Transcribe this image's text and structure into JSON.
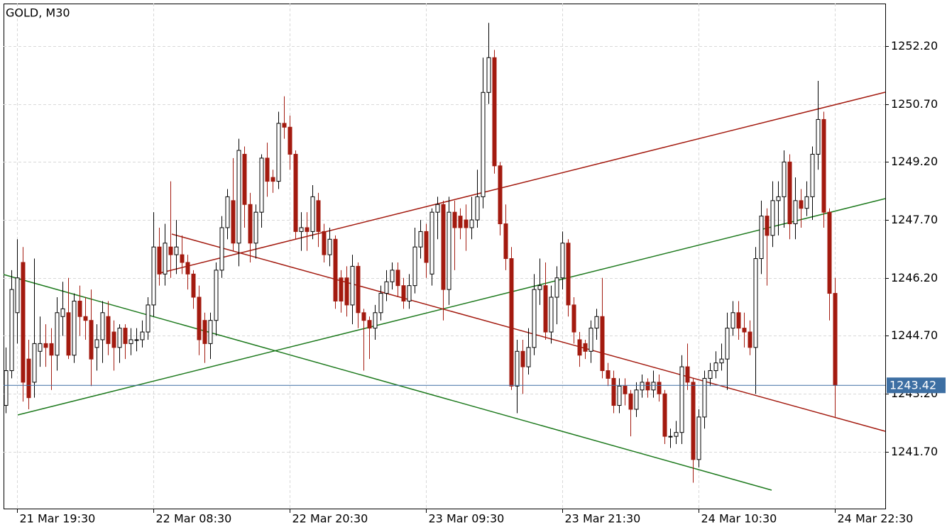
{
  "chart_data": {
    "type": "candlestick",
    "title": "GOLD, M30",
    "categories": [
      null,
      null,
      "21 Mar 19:30",
      null,
      null,
      null,
      null,
      null,
      null,
      null,
      null,
      null,
      null,
      null,
      null,
      null,
      null,
      null,
      null,
      null,
      null,
      null,
      null,
      null,
      null,
      null,
      "22 Mar 08:30",
      null,
      null,
      null,
      null,
      null,
      null,
      null,
      null,
      null,
      null,
      null,
      null,
      null,
      null,
      null,
      null,
      null,
      null,
      null,
      null,
      null,
      null,
      null,
      "22 Mar 20:30",
      null,
      null,
      null,
      null,
      null,
      null,
      null,
      null,
      null,
      null,
      null,
      null,
      null,
      null,
      null,
      null,
      null,
      null,
      null,
      null,
      null,
      null,
      null,
      "23 Mar 09:30",
      null,
      null,
      null,
      null,
      null,
      null,
      null,
      null,
      null,
      null,
      null,
      null,
      null,
      null,
      null,
      null,
      null,
      null,
      null,
      null,
      null,
      null,
      null,
      "23 Mar 21:30",
      null,
      null,
      null,
      null,
      null,
      null,
      null,
      null,
      null,
      null,
      null,
      null,
      null,
      null,
      null,
      null,
      null,
      null,
      null,
      null,
      null,
      null,
      null,
      "24 Mar 10:30",
      null,
      null,
      null,
      null,
      null,
      null,
      null,
      null,
      null,
      null,
      null,
      null,
      null,
      null,
      null,
      null,
      null,
      null,
      null,
      null,
      null,
      null,
      null,
      "24 Mar 22:30"
    ],
    "open": [
      1242.9,
      1243.8,
      1245.3,
      1246.6,
      1244.1,
      1243.5,
      1244.3,
      1244.5,
      1244.5,
      1244.2,
      1245.2,
      1245.3,
      1244.2,
      1245.6,
      1245.2,
      1245.1,
      1244.4,
      1244.6,
      1245.2,
      1244.8,
      1244.4,
      1244.9,
      1244.5,
      1244.6,
      1244.6,
      1244.8,
      1245.5,
      1247.0,
      1246.3,
      1247.0,
      1246.8,
      1246.8,
      1246.6,
      1246.3,
      1245.7,
      1245.1,
      1244.5,
      1245.1,
      1246.4,
      1247.5,
      1248.2,
      1247.1,
      1249.4,
      1248.1,
      1247.1,
      1247.9,
      1249.3,
      1248.8,
      1248.7,
      1250.2,
      1250.1,
      1249.4,
      1247.4,
      1247.5,
      1247.4,
      1248.2,
      1247.4,
      1246.8,
      1247.2,
      1246.2,
      1246.2,
      1245.5,
      1246.5,
      1245.3,
      1245.1,
      1244.9,
      1245.3,
      1245.8,
      1246.1,
      1246.4,
      1246.0,
      1245.6,
      1246.0,
      1247.0,
      1247.4,
      1246.3,
      1247.9,
      1248.1,
      1245.9,
      1247.9,
      1247.8,
      1247.7,
      1247.5,
      1247.7,
      1248.3,
      1251.0,
      1251.9,
      1249.1,
      1247.6,
      1246.7,
      1243.4,
      1244.3,
      1243.9,
      1244.4,
      1245.9,
      1246.0,
      1244.8,
      1245.7,
      1246.2,
      1247.1,
      1245.5,
      1244.6,
      1244.5,
      1244.3,
      1244.9,
      1245.2,
      1243.8,
      1243.6,
      1242.9,
      1243.4,
      1243.2,
      1242.8,
      1243.3,
      1243.5,
      1243.3,
      1243.5,
      1243.2,
      1242.1,
      1242.1,
      1242.2,
      1243.9,
      1243.5,
      1241.5,
      1242.6,
      1243.6,
      1243.8,
      1244.0,
      1244.1,
      1244.9,
      1245.3,
      1244.9,
      1244.8,
      1244.4,
      1246.7,
      1247.8,
      1247.3,
      1248.2,
      1248.3,
      1249.2,
      1247.6,
      1248.2,
      1248.0,
      1248.3,
      1249.4,
      1250.3,
      1247.9,
      1245.8
    ],
    "high": [
      1244.4,
      1246.4,
      1247.2,
      1247.0,
      1244.6,
      1246.7,
      1245.2,
      1245.0,
      1244.9,
      1245.7,
      1246.1,
      1246.2,
      1245.8,
      1246.0,
      1245.7,
      1245.9,
      1245.0,
      1245.6,
      1245.6,
      1245.1,
      1245.0,
      1245.0,
      1244.9,
      1244.9,
      1245.1,
      1245.7,
      1247.9,
      1247.5,
      1247.6,
      1248.7,
      1247.7,
      1247.3,
      1246.8,
      1246.4,
      1246.0,
      1245.3,
      1245.3,
      1246.6,
      1247.8,
      1248.5,
      1249.3,
      1249.8,
      1249.6,
      1248.4,
      1248.1,
      1249.4,
      1249.7,
      1249.0,
      1250.5,
      1250.9,
      1250.4,
      1249.5,
      1247.9,
      1247.9,
      1248.6,
      1248.4,
      1247.6,
      1247.5,
      1247.3,
      1246.4,
      1246.5,
      1246.8,
      1246.6,
      1245.4,
      1245.2,
      1245.5,
      1246.0,
      1246.4,
      1246.6,
      1246.6,
      1246.2,
      1246.3,
      1247.5,
      1247.7,
      1247.6,
      1248.0,
      1248.3,
      1248.2,
      1248.3,
      1248.2,
      1248.0,
      1248.1,
      1248.3,
      1249.0,
      1251.9,
      1252.8,
      1252.1,
      1249.2,
      1248.1,
      1247.0,
      1244.6,
      1244.6,
      1244.9,
      1246.3,
      1246.7,
      1246.6,
      1246.0,
      1246.5,
      1247.4,
      1247.2,
      1245.7,
      1244.8,
      1244.6,
      1245.1,
      1245.4,
      1246.2,
      1244.0,
      1243.8,
      1243.6,
      1243.6,
      1243.3,
      1243.5,
      1243.7,
      1243.6,
      1243.8,
      1243.7,
      1243.3,
      1242.3,
      1242.5,
      1244.2,
      1244.5,
      1243.6,
      1242.8,
      1243.8,
      1244.0,
      1244.3,
      1244.5,
      1245.3,
      1245.6,
      1245.6,
      1245.3,
      1245.1,
      1247.0,
      1248.2,
      1248.0,
      1248.7,
      1248.7,
      1249.5,
      1249.4,
      1248.8,
      1248.5,
      1248.7,
      1249.6,
      1251.3,
      1250.5,
      1248.0,
      1246.2
    ],
    "low": [
      1242.7,
      1243.6,
      1244.5,
      1243.0,
      1242.8,
      1243.1,
      1243.9,
      1243.9,
      1243.3,
      1243.8,
      1244.7,
      1244.1,
      1244.0,
      1244.7,
      1244.6,
      1243.4,
      1243.8,
      1244.0,
      1244.2,
      1243.8,
      1244.0,
      1244.1,
      1244.2,
      1244.3,
      1244.4,
      1244.6,
      1245.2,
      1246.0,
      1246.0,
      1246.2,
      1246.3,
      1246.3,
      1245.9,
      1245.4,
      1244.2,
      1244.0,
      1244.1,
      1244.7,
      1246.2,
      1247.2,
      1246.9,
      1246.5,
      1247.5,
      1246.6,
      1246.7,
      1247.5,
      1248.3,
      1248.4,
      1248.5,
      1249.8,
      1249.0,
      1247.2,
      1246.9,
      1246.9,
      1247.2,
      1247.0,
      1246.6,
      1246.5,
      1245.4,
      1245.3,
      1245.2,
      1245.0,
      1244.9,
      1243.8,
      1244.1,
      1244.6,
      1245.1,
      1245.6,
      1245.9,
      1245.7,
      1245.4,
      1245.4,
      1245.8,
      1246.7,
      1246.2,
      1246.0,
      1247.2,
      1245.1,
      1245.5,
      1246.4,
      1247.2,
      1246.9,
      1247.2,
      1247.5,
      1248.0,
      1250.7,
      1248.9,
      1247.3,
      1246.4,
      1243.3,
      1242.7,
      1243.2,
      1243.7,
      1244.2,
      1245.5,
      1244.6,
      1244.5,
      1245.0,
      1245.9,
      1245.2,
      1244.5,
      1243.9,
      1244.1,
      1244.0,
      1244.6,
      1243.6,
      1243.4,
      1242.7,
      1242.7,
      1242.9,
      1242.1,
      1242.6,
      1243.1,
      1243.1,
      1243.1,
      1243.0,
      1241.9,
      1241.8,
      1241.9,
      1241.9,
      1243.3,
      1240.9,
      1241.3,
      1242.3,
      1243.4,
      1243.6,
      1243.8,
      1243.3,
      1244.7,
      1244.6,
      1244.4,
      1244.2,
      1243.2,
      1246.3,
      1246.0,
      1247.0,
      1247.3,
      1247.5,
      1247.2,
      1247.2,
      1247.5,
      1247.8,
      1247.7,
      1249.0,
      1247.5,
      1245.1,
      1242.6
    ],
    "close": [
      1243.8,
      1245.9,
      1246.2,
      1243.5,
      1243.1,
      1244.5,
      1244.5,
      1244.4,
      1244.2,
      1245.3,
      1245.4,
      1244.2,
      1245.6,
      1245.2,
      1245.1,
      1244.1,
      1244.6,
      1245.3,
      1244.5,
      1244.4,
      1244.9,
      1244.5,
      1244.6,
      1244.6,
      1244.8,
      1245.5,
      1247.0,
      1246.3,
      1247.1,
      1246.8,
      1247.0,
      1246.6,
      1246.3,
      1245.7,
      1244.6,
      1244.5,
      1245.1,
      1246.4,
      1247.5,
      1248.3,
      1247.1,
      1249.5,
      1248.1,
      1247.1,
      1247.9,
      1249.3,
      1248.7,
      1248.7,
      1250.2,
      1250.1,
      1249.4,
      1247.4,
      1247.5,
      1247.4,
      1248.3,
      1247.4,
      1246.8,
      1247.2,
      1245.6,
      1245.6,
      1245.5,
      1246.5,
      1245.3,
      1245.1,
      1244.9,
      1245.3,
      1245.8,
      1246.1,
      1246.4,
      1246.0,
      1245.6,
      1246.0,
      1247.0,
      1247.4,
      1246.6,
      1247.9,
      1248.1,
      1245.9,
      1247.9,
      1247.5,
      1247.5,
      1247.5,
      1247.7,
      1248.3,
      1251.0,
      1251.9,
      1249.1,
      1247.6,
      1246.7,
      1243.4,
      1244.3,
      1243.9,
      1244.4,
      1245.9,
      1246.0,
      1244.8,
      1245.7,
      1246.2,
      1247.1,
      1245.5,
      1244.8,
      1244.2,
      1244.3,
      1244.9,
      1245.2,
      1243.8,
      1243.6,
      1242.9,
      1243.4,
      1243.2,
      1242.8,
      1243.3,
      1243.5,
      1243.3,
      1243.5,
      1243.2,
      1242.1,
      1242.1,
      1242.2,
      1243.9,
      1243.5,
      1241.5,
      1242.6,
      1243.6,
      1243.8,
      1244.0,
      1244.1,
      1244.9,
      1245.3,
      1244.9,
      1244.8,
      1244.4,
      1246.7,
      1247.8,
      1247.3,
      1248.2,
      1248.3,
      1249.2,
      1247.6,
      1248.2,
      1248.0,
      1248.3,
      1249.4,
      1250.3,
      1247.9,
      1245.8,
      1243.42
    ],
    "up_color": "#ffffff",
    "down_color": "#a31a0f",
    "last_price": 1243.42,
    "last_price_color": "#3d6fa3",
    "ylim": [
      1240.23,
      1253.3
    ],
    "yticks": [
      {
        "value": 1241.7,
        "label": "1241.70"
      },
      {
        "value": 1243.2,
        "label": "1243.20"
      },
      {
        "value": 1244.7,
        "label": "1244.70"
      },
      {
        "value": 1246.2,
        "label": "1246.20"
      },
      {
        "value": 1247.7,
        "label": "1247.70"
      },
      {
        "value": 1249.2,
        "label": "1249.20"
      },
      {
        "value": 1250.7,
        "label": "1250.70"
      },
      {
        "value": 1252.2,
        "label": "1252.20"
      }
    ],
    "grid": true
  }
}
